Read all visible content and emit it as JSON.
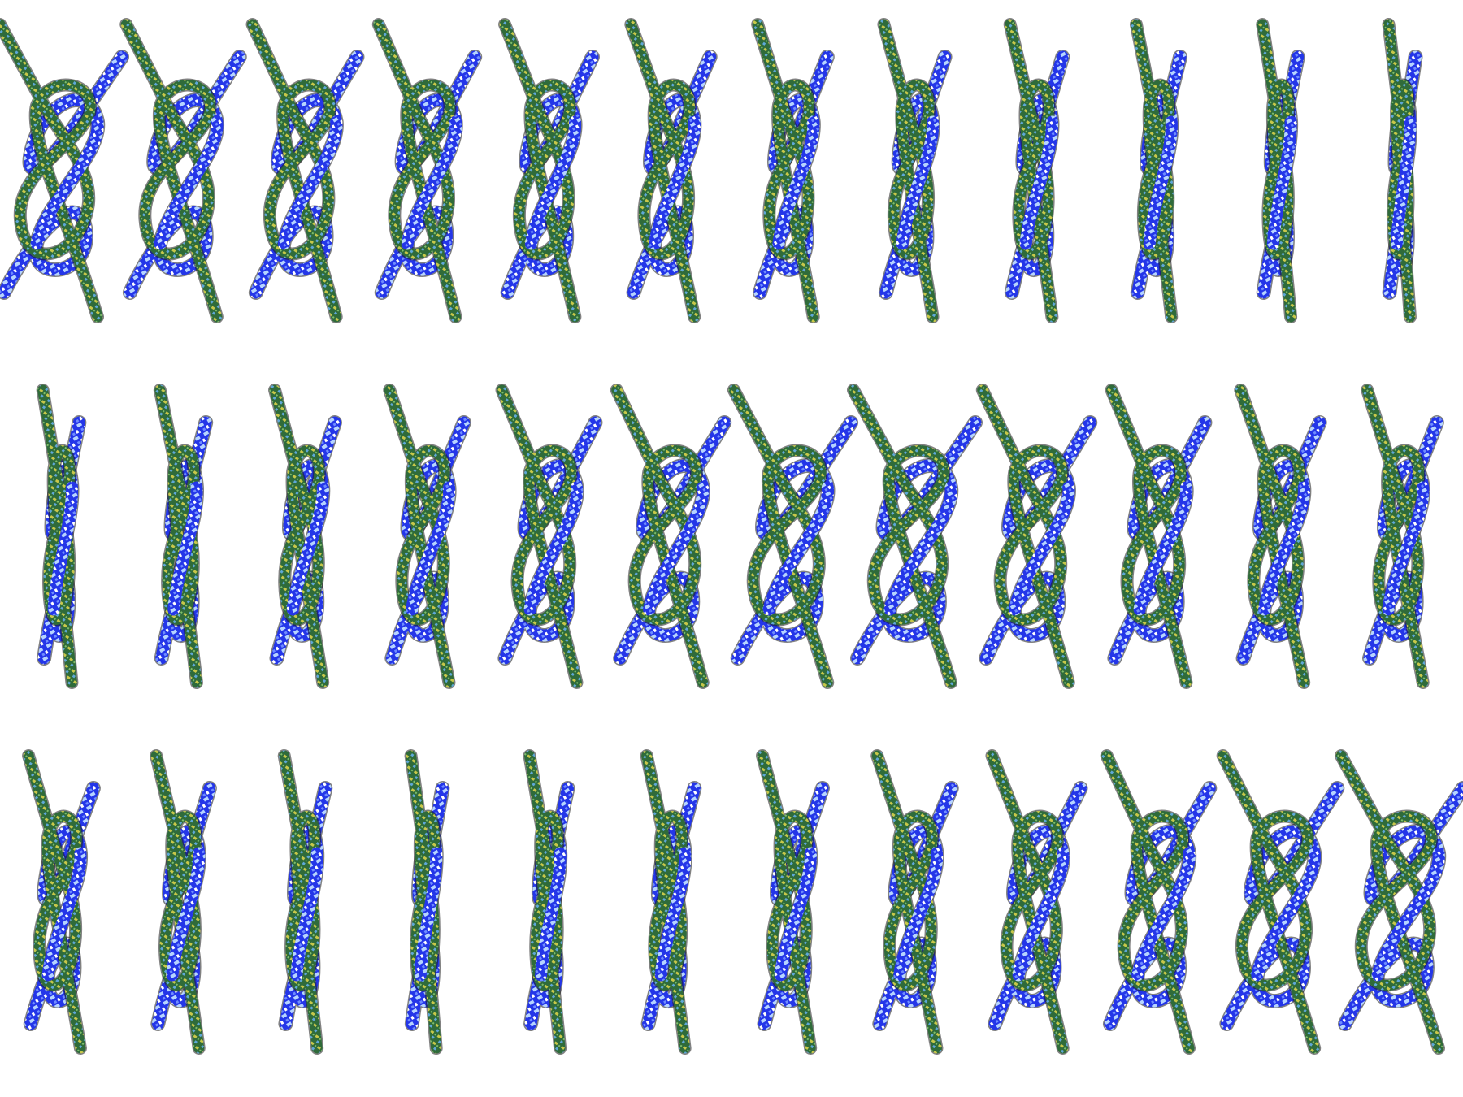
{
  "image": {
    "subject": "",
    "rows": 3,
    "columns": 12,
    "frames": [
      {
        "row": 0,
        "col": 0,
        "twist": 0.0
      },
      {
        "row": 0,
        "col": 1,
        "twist": 0.09
      },
      {
        "row": 0,
        "col": 2,
        "twist": 0.18
      },
      {
        "row": 0,
        "col": 3,
        "twist": 0.27
      },
      {
        "row": 0,
        "col": 4,
        "twist": 0.36
      },
      {
        "row": 0,
        "col": 5,
        "twist": 0.45
      },
      {
        "row": 0,
        "col": 6,
        "twist": 0.55
      },
      {
        "row": 0,
        "col": 7,
        "twist": 0.64
      },
      {
        "row": 0,
        "col": 8,
        "twist": 0.73
      },
      {
        "row": 0,
        "col": 9,
        "twist": 0.82
      },
      {
        "row": 0,
        "col": 10,
        "twist": 0.91
      },
      {
        "row": 0,
        "col": 11,
        "twist": 1.0
      },
      {
        "row": 1,
        "col": 0,
        "twist": 0.9
      },
      {
        "row": 1,
        "col": 1,
        "twist": 0.8
      },
      {
        "row": 1,
        "col": 2,
        "twist": 0.65
      },
      {
        "row": 1,
        "col": 3,
        "twist": 0.5
      },
      {
        "row": 1,
        "col": 4,
        "twist": 0.3
      },
      {
        "row": 1,
        "col": 5,
        "twist": 0.15
      },
      {
        "row": 1,
        "col": 6,
        "twist": 0.05
      },
      {
        "row": 1,
        "col": 7,
        "twist": 0.0
      },
      {
        "row": 1,
        "col": 8,
        "twist": 0.15
      },
      {
        "row": 1,
        "col": 9,
        "twist": 0.3
      },
      {
        "row": 1,
        "col": 10,
        "twist": 0.45
      },
      {
        "row": 1,
        "col": 11,
        "twist": 0.55
      },
      {
        "row": 2,
        "col": 0,
        "twist": 0.6
      },
      {
        "row": 2,
        "col": 1,
        "twist": 0.72
      },
      {
        "row": 2,
        "col": 2,
        "twist": 0.85
      },
      {
        "row": 2,
        "col": 3,
        "twist": 0.95
      },
      {
        "row": 2,
        "col": 4,
        "twist": 0.88
      },
      {
        "row": 2,
        "col": 5,
        "twist": 0.78
      },
      {
        "row": 2,
        "col": 6,
        "twist": 0.65
      },
      {
        "row": 2,
        "col": 7,
        "twist": 0.5
      },
      {
        "row": 2,
        "col": 8,
        "twist": 0.35
      },
      {
        "row": 2,
        "col": 9,
        "twist": 0.2
      },
      {
        "row": 2,
        "col": 10,
        "twist": 0.08
      },
      {
        "row": 2,
        "col": 11,
        "twist": 0.0
      }
    ],
    "colors": {
      "background": "#ffffff",
      "rope_a_base": "#2f6b3a",
      "rope_a_fleck": "#c8c84a",
      "rope_a_fleck2": "#5fa8d8",
      "rope_b_base": "#2436e8",
      "rope_b_fleck": "#b6d4ff",
      "rope_b_fleck2": "#ffffff",
      "shadow": "#1a1a1a"
    }
  }
}
